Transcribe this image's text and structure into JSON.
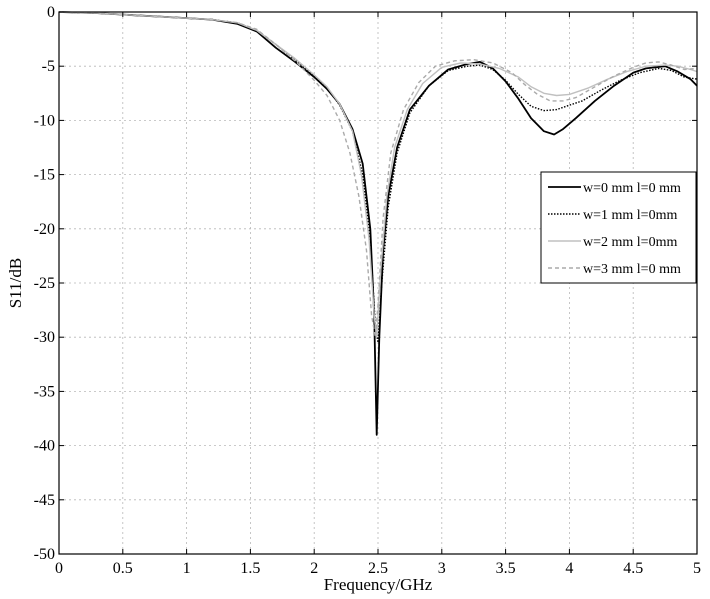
{
  "chart_data": {
    "type": "line",
    "title": "",
    "xlabel": "Frequency/GHz",
    "ylabel": "S11/dB",
    "xlim": [
      0,
      5
    ],
    "ylim": [
      -50,
      0
    ],
    "xticks": [
      0,
      0.5,
      1,
      1.5,
      2,
      2.5,
      3,
      3.5,
      4,
      4.5,
      5
    ],
    "xtick_labels": [
      "0",
      "0.5",
      "1",
      "1.5",
      "2",
      "2.5",
      "3",
      "3.5",
      "4",
      "4.5",
      "5"
    ],
    "yticks": [
      0,
      -5,
      -10,
      -15,
      -20,
      -25,
      -30,
      -35,
      -40,
      -45,
      -50
    ],
    "ytick_labels": [
      "0",
      "-5",
      "-10",
      "-15",
      "-20",
      "-25",
      "-30",
      "-35",
      "-40",
      "-45",
      "-50"
    ],
    "grid": true,
    "legend_position": "right",
    "series": [
      {
        "name": "w=0 mm l=0 mm",
        "color": "#000000",
        "style": "solid",
        "points": [
          [
            0,
            0
          ],
          [
            0.3,
            -0.1
          ],
          [
            0.6,
            -0.3
          ],
          [
            0.9,
            -0.5
          ],
          [
            1.2,
            -0.7
          ],
          [
            1.4,
            -1.1
          ],
          [
            1.55,
            -1.8
          ],
          [
            1.7,
            -3.3
          ],
          [
            1.85,
            -4.6
          ],
          [
            2.0,
            -6.0
          ],
          [
            2.1,
            -7.1
          ],
          [
            2.2,
            -8.5
          ],
          [
            2.3,
            -10.8
          ],
          [
            2.38,
            -14.0
          ],
          [
            2.44,
            -20.0
          ],
          [
            2.47,
            -28.0
          ],
          [
            2.49,
            -39.0
          ],
          [
            2.51,
            -30.0
          ],
          [
            2.54,
            -22.0
          ],
          [
            2.58,
            -17.0
          ],
          [
            2.65,
            -12.5
          ],
          [
            2.75,
            -9.0
          ],
          [
            2.9,
            -6.8
          ],
          [
            3.05,
            -5.3
          ],
          [
            3.2,
            -4.8
          ],
          [
            3.3,
            -4.6
          ],
          [
            3.4,
            -5.2
          ],
          [
            3.5,
            -6.4
          ],
          [
            3.6,
            -8.0
          ],
          [
            3.7,
            -9.8
          ],
          [
            3.8,
            -11.0
          ],
          [
            3.88,
            -11.3
          ],
          [
            3.95,
            -10.8
          ],
          [
            4.05,
            -9.8
          ],
          [
            4.2,
            -8.2
          ],
          [
            4.35,
            -6.8
          ],
          [
            4.5,
            -5.6
          ],
          [
            4.6,
            -5.2
          ],
          [
            4.75,
            -5.0
          ],
          [
            4.85,
            -5.5
          ],
          [
            4.95,
            -6.2
          ],
          [
            5.0,
            -6.8
          ]
        ]
      },
      {
        "name": "w=1 mm l=0mm",
        "color": "#000000",
        "style": "dotted",
        "points": [
          [
            0,
            0
          ],
          [
            0.3,
            -0.1
          ],
          [
            0.6,
            -0.3
          ],
          [
            0.9,
            -0.5
          ],
          [
            1.2,
            -0.7
          ],
          [
            1.4,
            -1.0
          ],
          [
            1.55,
            -1.7
          ],
          [
            1.7,
            -3.0
          ],
          [
            1.85,
            -4.4
          ],
          [
            2.0,
            -5.9
          ],
          [
            2.1,
            -7.0
          ],
          [
            2.2,
            -8.6
          ],
          [
            2.3,
            -11.0
          ],
          [
            2.38,
            -15.0
          ],
          [
            2.44,
            -21.0
          ],
          [
            2.48,
            -29.0
          ],
          [
            2.5,
            -30.5
          ],
          [
            2.53,
            -25.0
          ],
          [
            2.58,
            -18.0
          ],
          [
            2.65,
            -13.0
          ],
          [
            2.75,
            -9.3
          ],
          [
            2.9,
            -6.8
          ],
          [
            3.05,
            -5.4
          ],
          [
            3.2,
            -5.0
          ],
          [
            3.3,
            -4.9
          ],
          [
            3.4,
            -5.3
          ],
          [
            3.5,
            -6.3
          ],
          [
            3.6,
            -7.6
          ],
          [
            3.7,
            -8.7
          ],
          [
            3.8,
            -9.1
          ],
          [
            3.9,
            -9.0
          ],
          [
            4.0,
            -8.6
          ],
          [
            4.1,
            -8.2
          ],
          [
            4.25,
            -7.2
          ],
          [
            4.4,
            -6.3
          ],
          [
            4.55,
            -5.6
          ],
          [
            4.7,
            -5.2
          ],
          [
            4.8,
            -5.4
          ],
          [
            4.9,
            -6.0
          ],
          [
            5.0,
            -6.2
          ]
        ]
      },
      {
        "name": "w=2 mm l=0mm",
        "color": "#c0c0c0",
        "style": "solid",
        "points": [
          [
            0,
            0
          ],
          [
            0.3,
            -0.1
          ],
          [
            0.6,
            -0.3
          ],
          [
            0.9,
            -0.5
          ],
          [
            1.2,
            -0.7
          ],
          [
            1.4,
            -1.0
          ],
          [
            1.55,
            -1.7
          ],
          [
            1.7,
            -3.0
          ],
          [
            1.85,
            -4.3
          ],
          [
            2.0,
            -5.8
          ],
          [
            2.1,
            -6.9
          ],
          [
            2.2,
            -8.5
          ],
          [
            2.3,
            -11.0
          ],
          [
            2.37,
            -15.0
          ],
          [
            2.43,
            -21.0
          ],
          [
            2.47,
            -28.0
          ],
          [
            2.49,
            -30.0
          ],
          [
            2.52,
            -24.0
          ],
          [
            2.57,
            -17.0
          ],
          [
            2.63,
            -12.5
          ],
          [
            2.73,
            -9.0
          ],
          [
            2.85,
            -6.6
          ],
          [
            3.0,
            -5.1
          ],
          [
            3.15,
            -4.7
          ],
          [
            3.3,
            -4.8
          ],
          [
            3.45,
            -5.2
          ],
          [
            3.6,
            -6.0
          ],
          [
            3.7,
            -6.9
          ],
          [
            3.8,
            -7.5
          ],
          [
            3.9,
            -7.7
          ],
          [
            4.0,
            -7.6
          ],
          [
            4.15,
            -7.0
          ],
          [
            4.3,
            -6.2
          ],
          [
            4.45,
            -5.5
          ],
          [
            4.6,
            -5.0
          ],
          [
            4.75,
            -4.9
          ],
          [
            4.85,
            -5.0
          ],
          [
            4.95,
            -5.3
          ],
          [
            5.0,
            -5.5
          ]
        ]
      },
      {
        "name": "w=3 mm l=0 mm",
        "color": "#aaaaaa",
        "style": "dashed",
        "points": [
          [
            0,
            0
          ],
          [
            0.3,
            -0.1
          ],
          [
            0.6,
            -0.3
          ],
          [
            0.9,
            -0.5
          ],
          [
            1.2,
            -0.7
          ],
          [
            1.4,
            -1.0
          ],
          [
            1.55,
            -1.6
          ],
          [
            1.7,
            -3.0
          ],
          [
            1.85,
            -4.5
          ],
          [
            2.0,
            -6.3
          ],
          [
            2.1,
            -7.7
          ],
          [
            2.2,
            -10.0
          ],
          [
            2.28,
            -13.0
          ],
          [
            2.35,
            -17.0
          ],
          [
            2.41,
            -22.0
          ],
          [
            2.45,
            -28.0
          ],
          [
            2.48,
            -30.0
          ],
          [
            2.5,
            -27.0
          ],
          [
            2.54,
            -19.0
          ],
          [
            2.6,
            -13.0
          ],
          [
            2.7,
            -9.0
          ],
          [
            2.82,
            -6.5
          ],
          [
            2.95,
            -5.0
          ],
          [
            3.1,
            -4.5
          ],
          [
            3.25,
            -4.4
          ],
          [
            3.4,
            -4.7
          ],
          [
            3.55,
            -5.6
          ],
          [
            3.65,
            -6.7
          ],
          [
            3.75,
            -7.6
          ],
          [
            3.85,
            -8.2
          ],
          [
            3.95,
            -8.2
          ],
          [
            4.05,
            -7.9
          ],
          [
            4.2,
            -6.9
          ],
          [
            4.35,
            -5.9
          ],
          [
            4.5,
            -5.1
          ],
          [
            4.6,
            -4.7
          ],
          [
            4.7,
            -4.6
          ],
          [
            4.8,
            -4.9
          ],
          [
            4.9,
            -5.3
          ],
          [
            5.0,
            -5.2
          ]
        ]
      }
    ]
  }
}
